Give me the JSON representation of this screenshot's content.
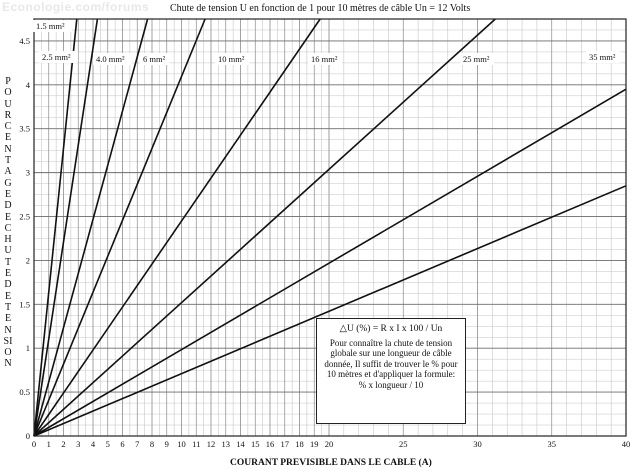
{
  "watermark": "Econologie.com/forums",
  "chart_data": {
    "type": "line",
    "title": "Chute de tension U en fonction de 1 pour 10 mètres de câble Un = 12 Volts",
    "xlabel": "COURANT PREVISIBLE DANS LE CABLE (A)",
    "ylabel": "POURCENTAGE DE CHUTE DE TENSION",
    "xlim": [
      0,
      40
    ],
    "ylim": [
      0,
      4.75
    ],
    "x_ticks": [
      0,
      1,
      2,
      3,
      4,
      5,
      6,
      7,
      8,
      9,
      10,
      11,
      12,
      13,
      14,
      15,
      16,
      17,
      18,
      19,
      20,
      25,
      30,
      35,
      40
    ],
    "y_ticks": [
      0,
      0.5,
      1,
      1.5,
      2,
      2.5,
      3,
      3.5,
      4,
      4.5
    ],
    "y_tick_labels": [
      "0",
      "0.5",
      "1",
      "1.5",
      "2",
      "2.5",
      "3",
      "3.5",
      "4",
      "4.5"
    ],
    "grid": true,
    "series": [
      {
        "name": "1.5 mm²",
        "x": [
          0,
          2.9
        ],
        "y": [
          0,
          4.75
        ]
      },
      {
        "name": "2.5 mm²",
        "x": [
          0,
          4.3
        ],
        "y": [
          0,
          4.75
        ]
      },
      {
        "name": "4.0 mm²",
        "x": [
          0,
          7.7
        ],
        "y": [
          0,
          4.75
        ]
      },
      {
        "name": "6 mm²",
        "x": [
          0,
          11.6
        ],
        "y": [
          0,
          4.75
        ]
      },
      {
        "name": "10 mm²",
        "x": [
          0,
          19.4
        ],
        "y": [
          0,
          4.75
        ]
      },
      {
        "name": "16 mm²",
        "x": [
          0,
          31.2
        ],
        "y": [
          0,
          4.75
        ]
      },
      {
        "name": "25 mm²",
        "x": [
          0,
          40
        ],
        "y": [
          0,
          3.95
        ]
      },
      {
        "name": "35 mm²",
        "x": [
          0,
          40
        ],
        "y": [
          0,
          2.85
        ]
      }
    ],
    "legend_placement": "top, along the curves"
  },
  "formula_box": {
    "formula": "△U (%) = R x I x 100 / Un",
    "text": "Pour connaître la chute de tension\nglobale sur une longueur de câble\ndonnée, Il suffit de trouver le % pour\n10 mètres et d'appliquer la formule:\n% x longueur / 10"
  }
}
